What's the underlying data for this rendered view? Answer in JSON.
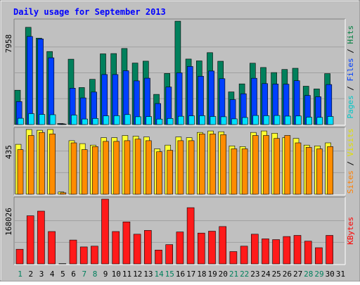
{
  "chart_data": {
    "type": "bar",
    "title": "Daily usage for September 2013",
    "days": [
      "1",
      "2",
      "3",
      "4",
      "5",
      "6",
      "7",
      "8",
      "9",
      "10",
      "11",
      "12",
      "13",
      "14",
      "15",
      "16",
      "17",
      "18",
      "19",
      "20",
      "21",
      "22",
      "23",
      "24",
      "25",
      "26",
      "27",
      "28",
      "29",
      "30",
      "31"
    ],
    "weekend_days": [
      "1",
      "7",
      "8",
      "14",
      "15",
      "21",
      "22",
      "28",
      "29"
    ],
    "panels": [
      {
        "id": "top",
        "max_label": "7958",
        "max": 7958,
        "right_label": [
          {
            "text": "Pages",
            "color": "#00c8c8"
          },
          {
            "text": " / ",
            "color": "#000000"
          },
          {
            "text": "Files",
            "color": "#0040ff"
          },
          {
            "text": " / ",
            "color": "#000000"
          },
          {
            "text": "Hits",
            "color": "#008040"
          }
        ],
        "series": [
          {
            "name": "Hits",
            "color": "#00805c",
            "values": [
              2640,
              7480,
              6650,
              5620,
              80,
              5030,
              2850,
              3480,
              5440,
              5460,
              5850,
              4730,
              4880,
              2320,
              3930,
              7950,
              5040,
              4900,
              5530,
              4870,
              2510,
              3130,
              4720,
              4390,
              4000,
              4240,
              4330,
              2950,
              2740,
              3920,
              0
            ]
          },
          {
            "name": "Files",
            "color": "#0040ff",
            "values": [
              1770,
              6780,
              6590,
              5140,
              60,
              2800,
              2050,
              2500,
              3850,
              3850,
              4140,
              3360,
              3570,
              1620,
              2890,
              3980,
              4470,
              3720,
              4120,
              3530,
              1920,
              2370,
              3560,
              3150,
              3120,
              3110,
              3370,
              2240,
              2140,
              3080,
              0
            ]
          },
          {
            "name": "Pages",
            "color": "#00e0ff",
            "values": [
              480,
              840,
              780,
              760,
              40,
              730,
              430,
              470,
              670,
              680,
              770,
              600,
              610,
              420,
              470,
              640,
              670,
              680,
              620,
              600,
              440,
              540,
              700,
              680,
              700,
              650,
              660,
              570,
              550,
              620,
              0
            ]
          }
        ]
      },
      {
        "id": "middle",
        "max_label": "435",
        "max": 435,
        "right_label": [
          {
            "text": "Sites",
            "color": "#ff8000"
          },
          {
            "text": " / ",
            "color": "#000000"
          },
          {
            "text": "Visits",
            "color": "#e0e000"
          }
        ],
        "series": [
          {
            "name": "Visits",
            "color": "#ffff33",
            "values": [
              335,
              435,
              430,
              435,
              15,
              360,
              340,
              330,
              380,
              380,
              395,
              390,
              385,
              305,
              330,
              385,
              380,
              415,
              425,
              420,
              325,
              320,
              415,
              425,
              410,
              380,
              375,
              330,
              325,
              345,
              0
            ]
          },
          {
            "name": "Sites",
            "color": "#ff8c00",
            "values": [
              300,
              395,
              415,
              405,
              10,
              345,
              300,
              320,
              355,
              355,
              360,
              370,
              360,
              285,
              295,
              360,
              360,
              405,
              405,
              400,
              305,
              305,
              395,
              395,
              375,
              395,
              345,
              315,
              305,
              320,
              0
            ]
          }
        ]
      },
      {
        "id": "bottom",
        "max_label": "168026",
        "max": 168026,
        "right_label": [
          {
            "text": "KBytes",
            "color": "#ff0000"
          }
        ],
        "series": [
          {
            "name": "KBytes",
            "color": "#ff1a1a",
            "values": [
              38000,
              125000,
              137000,
              84000,
              800,
              62000,
              44000,
              46000,
              168000,
              84000,
              109000,
              77000,
              87000,
              36000,
              50000,
              83000,
              146000,
              80000,
              85000,
              97000,
              32000,
              46000,
              77000,
              65000,
              63000,
              71000,
              74000,
              59000,
              42000,
              74000,
              0
            ]
          }
        ]
      }
    ]
  },
  "colors": {
    "background": "#ffffff",
    "frame": "#c0c0c0",
    "plot_background": "#c0c0c0",
    "title": "#0000ff",
    "weekend_label": "#00805c",
    "weekday_label": "#000000",
    "gridline": "#a0a0a0"
  }
}
